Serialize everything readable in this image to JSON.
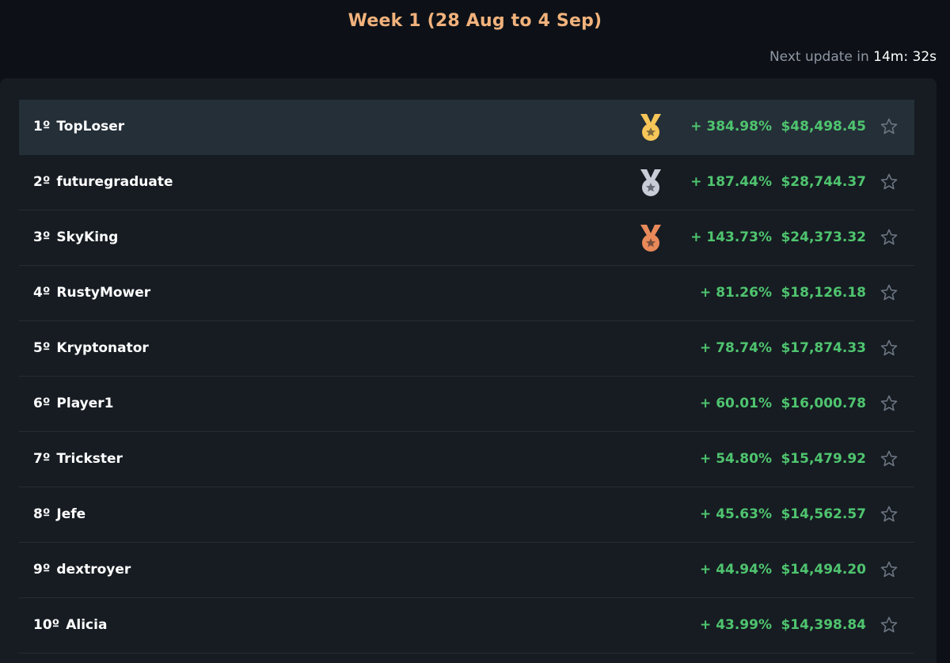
{
  "header": {
    "title": "Week 1 (28 Aug to 4 Sep)",
    "next_update_label": "Next update in",
    "next_update_minutes": "14m:",
    "next_update_seconds": "32s"
  },
  "colors": {
    "gold": "#f6c659",
    "silver": "#c7ccd6",
    "bronze": "#e8895a",
    "positive": "#4fc46f",
    "accent_title": "#f1b27c"
  },
  "rows": [
    {
      "rank": "1º",
      "name": "TopLoser",
      "medal": "gold-medal-icon",
      "pct": "+ 384.98%",
      "amount": "$48,498.45",
      "star": "star-outline-icon"
    },
    {
      "rank": "2º",
      "name": "futuregraduate",
      "medal": "silver-medal-icon",
      "pct": "+ 187.44%",
      "amount": "$28,744.37",
      "star": "star-outline-icon"
    },
    {
      "rank": "3º",
      "name": "SkyKing",
      "medal": "bronze-medal-icon",
      "pct": "+ 143.73%",
      "amount": "$24,373.32",
      "star": "star-outline-icon"
    },
    {
      "rank": "4º",
      "name": "RustyMower",
      "medal": "",
      "pct": "+ 81.26%",
      "amount": "$18,126.18",
      "star": "star-outline-icon"
    },
    {
      "rank": "5º",
      "name": "Kryptonator",
      "medal": "",
      "pct": "+ 78.74%",
      "amount": "$17,874.33",
      "star": "star-outline-icon"
    },
    {
      "rank": "6º",
      "name": "Player1",
      "medal": "",
      "pct": "+ 60.01%",
      "amount": "$16,000.78",
      "star": "star-outline-icon"
    },
    {
      "rank": "7º",
      "name": "Trickster",
      "medal": "",
      "pct": "+ 54.80%",
      "amount": "$15,479.92",
      "star": "star-outline-icon"
    },
    {
      "rank": "8º",
      "name": "Jefe",
      "medal": "",
      "pct": "+ 45.63%",
      "amount": "$14,562.57",
      "star": "star-outline-icon"
    },
    {
      "rank": "9º",
      "name": "dextroyer",
      "medal": "",
      "pct": "+ 44.94%",
      "amount": "$14,494.20",
      "star": "star-outline-icon"
    },
    {
      "rank": "10º",
      "name": "Alicia",
      "medal": "",
      "pct": "+ 43.99%",
      "amount": "$14,398.84",
      "star": "star-outline-icon"
    }
  ]
}
